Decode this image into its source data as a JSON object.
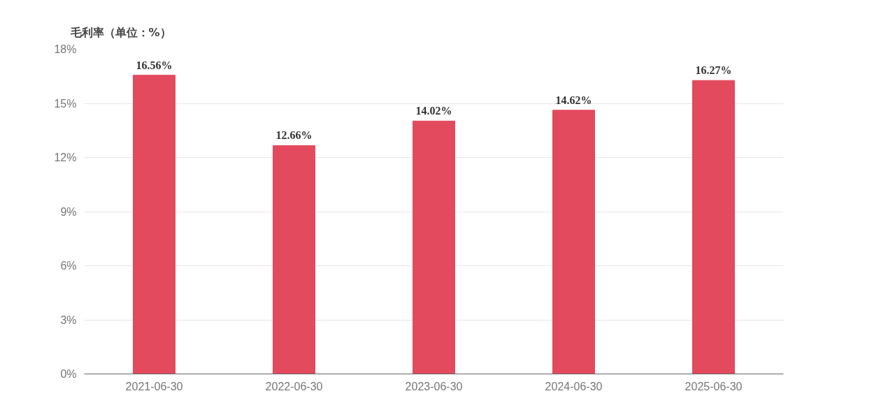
{
  "chart_data": {
    "type": "bar",
    "title": "毛利率（单位：%）",
    "categories": [
      "2021-06-30",
      "2022-06-30",
      "2023-06-30",
      "2024-06-30",
      "2025-06-30"
    ],
    "values": [
      16.56,
      12.66,
      14.02,
      14.62,
      16.27
    ],
    "value_labels": [
      "16.56%",
      "12.66%",
      "14.02%",
      "14.62%",
      "16.27%"
    ],
    "color": "#e34a5e",
    "ylim": [
      0,
      18
    ],
    "yticks": [
      {
        "value": 0,
        "label": "0%"
      },
      {
        "value": 3,
        "label": "3%"
      },
      {
        "value": 6,
        "label": "6%"
      },
      {
        "value": 9,
        "label": "9%"
      },
      {
        "value": 12,
        "label": "12%"
      },
      {
        "value": 15,
        "label": "15%"
      },
      {
        "value": 18,
        "label": "18%"
      }
    ],
    "grid": "y"
  }
}
